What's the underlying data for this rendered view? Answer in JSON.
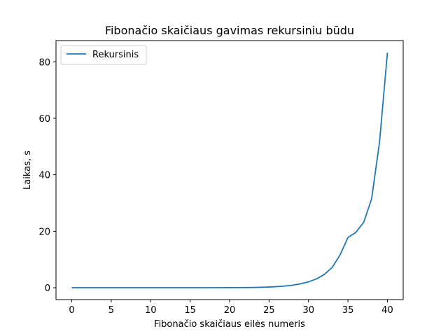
{
  "chart_data": {
    "type": "line",
    "title": "Fibonačio skaičiaus gavimas rekursiniu būdu",
    "xlabel": "Fibonačio skaičiaus eilės numeris",
    "ylabel": "Laikas, s",
    "xlim": [
      -2,
      42
    ],
    "ylim": [
      -4.2,
      87.5
    ],
    "xticks": [
      0,
      5,
      10,
      15,
      20,
      25,
      30,
      35,
      40
    ],
    "yticks": [
      0,
      20,
      40,
      60,
      80
    ],
    "grid": false,
    "legend": "upper-left",
    "series": [
      {
        "name": "Rekursinis",
        "color": "#1f77b4",
        "x": [
          0,
          1,
          2,
          3,
          4,
          5,
          6,
          7,
          8,
          9,
          10,
          11,
          12,
          13,
          14,
          15,
          16,
          17,
          18,
          19,
          20,
          21,
          22,
          23,
          24,
          25,
          26,
          27,
          28,
          29,
          30,
          31,
          32,
          33,
          34,
          35,
          36,
          37,
          38,
          39,
          40
        ],
        "values": [
          0,
          0,
          0,
          0,
          0,
          0,
          0,
          0,
          0,
          0,
          0,
          0,
          0,
          0,
          0,
          0,
          0,
          0.01,
          0.01,
          0.02,
          0.03,
          0.04,
          0.06,
          0.09,
          0.15,
          0.25,
          0.4,
          0.6,
          0.9,
          1.4,
          2.1,
          3.1,
          4.7,
          7.2,
          11.6,
          17.8,
          19.6,
          23.2,
          31.5,
          51.5,
          83.2
        ]
      }
    ]
  }
}
